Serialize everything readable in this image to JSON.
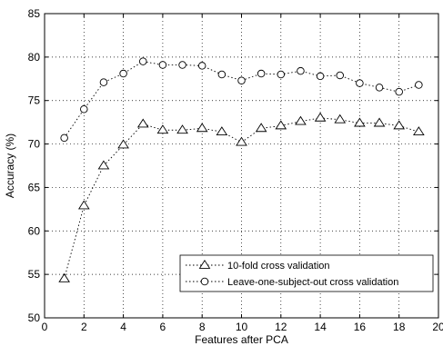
{
  "chart_data": {
    "type": "line",
    "title": "",
    "xlabel": "Features after PCA",
    "ylabel": "Accuracy (%)",
    "xlim": [
      0,
      20
    ],
    "ylim": [
      50,
      85
    ],
    "xticks": [
      0,
      2,
      4,
      6,
      8,
      10,
      12,
      14,
      16,
      18,
      20
    ],
    "yticks": [
      50,
      55,
      60,
      65,
      70,
      75,
      80,
      85
    ],
    "grid": true,
    "legend_position": "bottom-right",
    "x": [
      1,
      2,
      3,
      4,
      5,
      6,
      7,
      8,
      9,
      10,
      11,
      12,
      13,
      14,
      15,
      16,
      17,
      18,
      19
    ],
    "series": [
      {
        "name": "10-fold cross validation",
        "marker": "triangle",
        "values": [
          54.5,
          62.9,
          67.5,
          69.9,
          72.3,
          71.6,
          71.6,
          71.8,
          71.4,
          70.2,
          71.8,
          72.1,
          72.6,
          73.0,
          72.8,
          72.4,
          72.4,
          72.1,
          71.4
        ]
      },
      {
        "name": "Leave-one-subject-out cross validation",
        "marker": "circle",
        "values": [
          70.7,
          74.0,
          77.1,
          78.1,
          79.5,
          79.1,
          79.1,
          79.0,
          78.0,
          77.3,
          78.1,
          78.0,
          78.4,
          77.8,
          77.9,
          77.0,
          76.5,
          76.0,
          76.8
        ]
      }
    ]
  }
}
